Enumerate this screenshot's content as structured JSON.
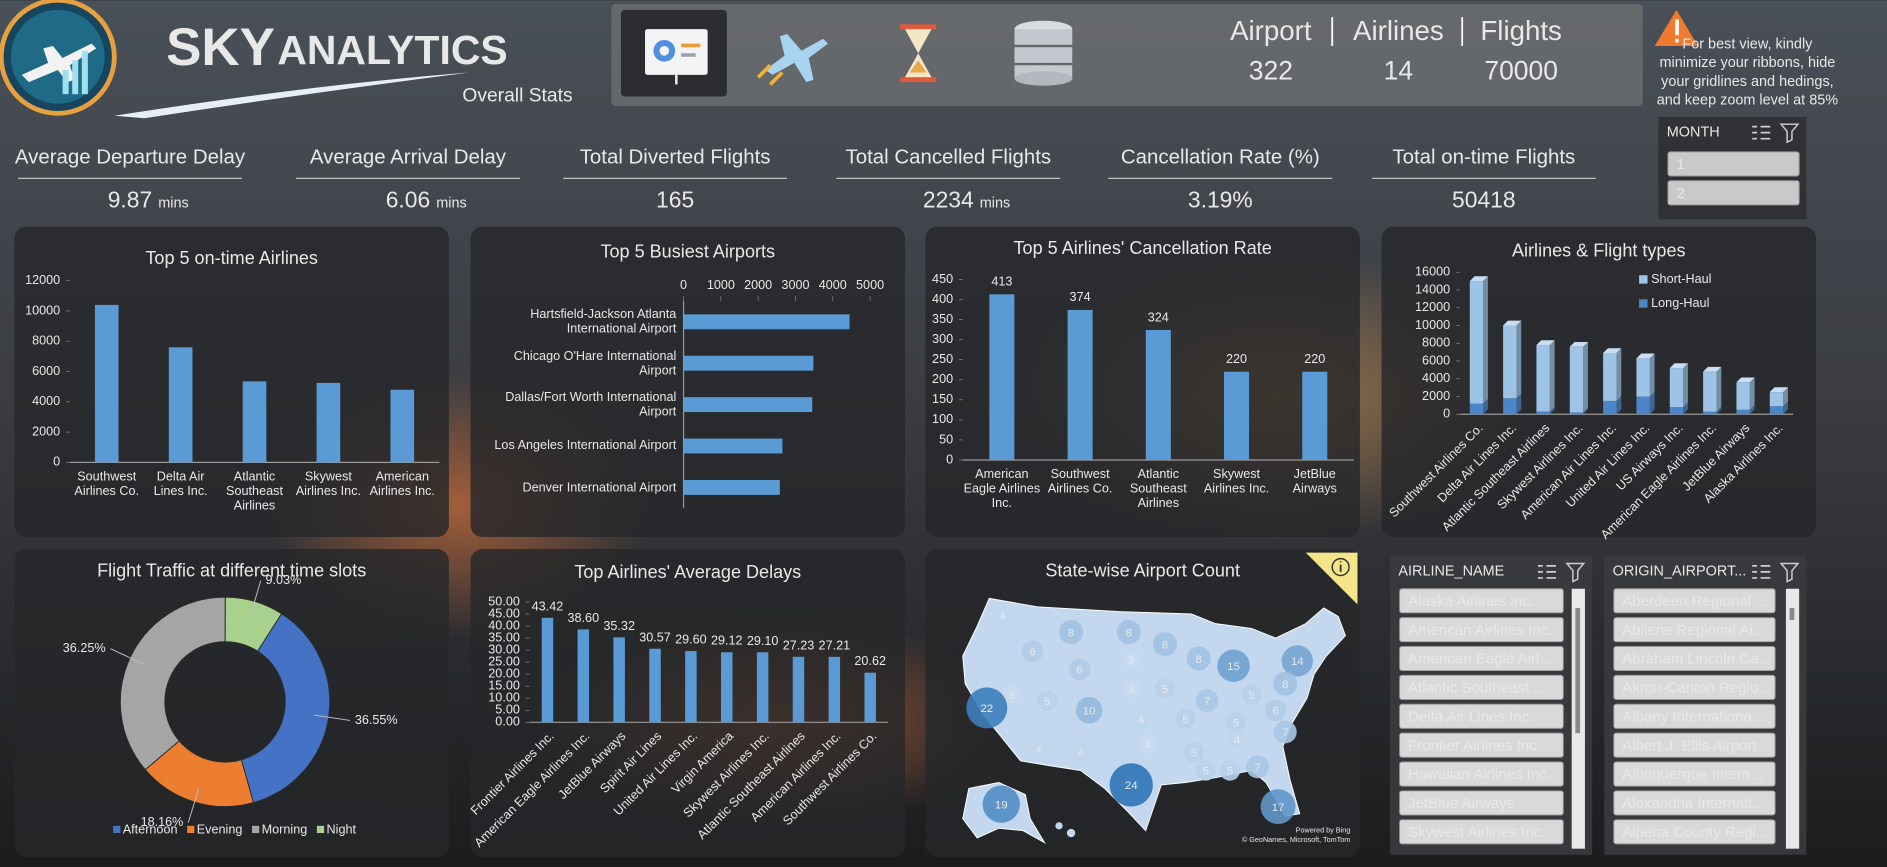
{
  "header": {
    "brand_a": "SKY",
    "brand_b": "ANALYTICS",
    "subtitle": "Overall Stats",
    "stats": {
      "labels": [
        "Airport",
        "Airlines",
        "Flights"
      ],
      "values": [
        "322",
        "14",
        "70000"
      ]
    },
    "note": [
      "For best view, kindly",
      "minimize your ribbons, hide",
      "your gridlines and hedings,",
      "and keep zoom level at 85%"
    ]
  },
  "kpis": [
    {
      "label": "Average Departure Delay",
      "value": "9.87",
      "unit": "mins"
    },
    {
      "label": "Average Arrival Delay",
      "value": "6.06",
      "unit": "mins"
    },
    {
      "label": "Total Diverted Flights",
      "value": "165"
    },
    {
      "label": "Total Cancelled Flights",
      "value": "2234",
      "unit": "mins"
    },
    {
      "label": "Cancellation Rate (%)",
      "value": "3.19%"
    },
    {
      "label": "Total on-time Flights",
      "value": "50418"
    }
  ],
  "slicers": [
    {
      "title": "MONTH",
      "items": [
        "1",
        "2"
      ]
    },
    {
      "title": "AIRLINE_NAME",
      "items": [
        "Alaska Airlines Inc.",
        "American Airlines Inc.",
        "American Eagle Airl...",
        "Atlantic Southeast ...",
        "Delta Air Lines Inc.",
        "Frontier Airlines Inc.",
        "Hawaiian Airlines Inc.",
        "JetBlue Airways",
        "Skywest Airlines Inc."
      ]
    },
    {
      "title": "ORIGIN_AIRPORT...",
      "items": [
        "Aberdeen Regional ...",
        "Abilene Regional Ai...",
        "Abraham Lincoln Ca...",
        "Akron-Canton Regio...",
        "Albany Internationa...",
        "Albert J. Ellis Airport",
        "Albuquerque Intern...",
        "Alexandria Internati...",
        "Alpena County Regi..."
      ]
    }
  ],
  "chart_data": [
    {
      "type": "bar",
      "title": "Top 5 on-time Airlines",
      "categories": [
        "Southwest Airlines Co.",
        "Delta Air Lines Inc.",
        "Atlantic Southeast Airlines",
        "Skywest Airlines Inc.",
        "American Airlines Inc."
      ],
      "values": [
        10400,
        7600,
        5350,
        5250,
        4800
      ],
      "color": "#5b9bd5",
      "ylim": [
        0,
        12000
      ],
      "yticks": [
        0,
        2000,
        4000,
        6000,
        8000,
        10000,
        12000
      ]
    },
    {
      "type": "hbar",
      "title": "Top 5 Busiest Airports",
      "categories": [
        "Hartsfield-Jackson Atlanta International Airport",
        "Chicago O'Hare International Airport",
        "Dallas/Fort Worth International Airport",
        "Los Angeles International Airport",
        "Denver International Airport"
      ],
      "values": [
        4450,
        3480,
        3450,
        2650,
        2580
      ],
      "color": "#5b9bd5",
      "xlim": [
        0,
        5000
      ],
      "xticks": [
        0,
        1000,
        2000,
        3000,
        4000,
        5000
      ]
    },
    {
      "type": "bar",
      "title": "Top 5 Airlines' Cancellation Rate",
      "categories": [
        "American Eagle Airlines Inc.",
        "Southwest Airlines Co.",
        "Atlantic Southeast Airlines",
        "Skywest Airlines Inc.",
        "JetBlue Airways"
      ],
      "values": [
        413,
        374,
        324,
        220,
        220
      ],
      "data_labels": true,
      "color": "#5b9bd5",
      "ylim": [
        0,
        450
      ],
      "yticks": [
        0,
        50,
        100,
        150,
        200,
        250,
        300,
        350,
        400,
        450
      ]
    },
    {
      "type": "stacked_bar",
      "title": "Airlines & Flight types",
      "categories": [
        "Southwest Airlines Co.",
        "Delta Air Lines Inc.",
        "Atlantic Southeast Airlines",
        "Skywest Airlines Inc.",
        "American Air Lines Inc.",
        "United Air Lines Inc.",
        "US Airways Inc.",
        "American Eagle Airlines Inc.",
        "JetBlue Airways",
        "Alaska Airlines Inc."
      ],
      "series": [
        {
          "name": "Short-Haul",
          "color": "#9dc3e6",
          "values": [
            13800,
            8200,
            7500,
            7400,
            5400,
            4300,
            4400,
            4500,
            3100,
            1600
          ]
        },
        {
          "name": "Long-Haul",
          "color": "#4a86c8",
          "values": [
            1200,
            1800,
            300,
            200,
            1500,
            2000,
            800,
            300,
            500,
            900
          ]
        }
      ],
      "ylim": [
        0,
        16000
      ],
      "yticks": [
        0,
        2000,
        4000,
        6000,
        8000,
        10000,
        12000,
        14000,
        16000
      ],
      "legend": "top-right"
    },
    {
      "type": "donut",
      "title": "Flight Traffic at different time slots",
      "categories": [
        "Afternoon",
        "Evening",
        "Morning",
        "Night"
      ],
      "values": [
        36.55,
        18.16,
        36.25,
        9.03
      ],
      "value_labels": [
        "36.55%",
        "18.16%",
        "36.25%",
        "9.03%"
      ],
      "colors": [
        "#4472c4",
        "#ed7d31",
        "#a5a5a5",
        "#a9d18e"
      ],
      "legend": "bottom"
    },
    {
      "type": "bar",
      "title": "Top Airlines' Average Delays",
      "categories": [
        "Frontier Airlines Inc.",
        "American Eagle Airlines Inc.",
        "JetBlue Airways",
        "Spirit Air Lines",
        "United Air Lines Inc.",
        "Virgin America",
        "Skywest Airlines Inc.",
        "Atlantic Southeast Airlines",
        "American Airlines Inc.",
        "Southwest Airlines Co."
      ],
      "values": [
        43.42,
        38.6,
        35.32,
        30.57,
        29.6,
        29.12,
        29.1,
        27.23,
        27.21,
        20.62
      ],
      "value_labels": [
        "43.42",
        "38.60",
        "35.32",
        "30.57",
        "29.60",
        "29.12",
        "29.10",
        "27.23",
        "27.21",
        "20.62"
      ],
      "color": "#5b9bd5",
      "ylim": [
        0,
        50
      ],
      "yticks": [
        {
          "value": 0,
          "label": "0.00"
        },
        {
          "value": 5,
          "label": "5.00"
        },
        {
          "value": 10,
          "label": "10.00"
        },
        {
          "value": 15,
          "label": "15.00"
        },
        {
          "value": 20,
          "label": "20.00"
        },
        {
          "value": 25,
          "label": "25.00"
        },
        {
          "value": 30,
          "label": "30.00"
        },
        {
          "value": 35,
          "label": "35.00"
        },
        {
          "value": 40,
          "label": "40.00"
        },
        {
          "value": 45,
          "label": "45.00"
        },
        {
          "value": 50,
          "label": "50.00"
        }
      ]
    },
    {
      "type": "map",
      "title": "State-wise Airport Count",
      "values": [
        4,
        8,
        8,
        6,
        8,
        3,
        3,
        22,
        6,
        5,
        3,
        8,
        15,
        5,
        14,
        8,
        10,
        5,
        4,
        5,
        7,
        5,
        4,
        6,
        7,
        4,
        4,
        3,
        5,
        5,
        7,
        5,
        24,
        19,
        17
      ],
      "color": "#2e75b6",
      "attribution": [
        "Powered by Bing",
        "© GeoNames, Microsoft, TomTom"
      ]
    }
  ]
}
